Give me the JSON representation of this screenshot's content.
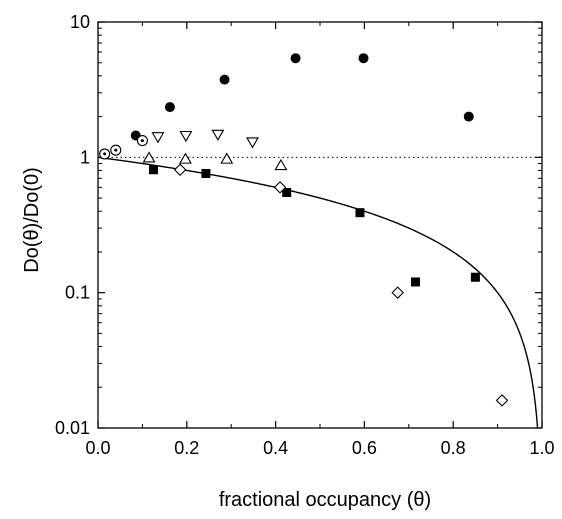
{
  "chart_data": {
    "type": "scatter",
    "title": "",
    "xlabel": "fractional occupancy (θ)",
    "ylabel": "Do(θ)/Do(0)",
    "xlim": [
      0.0,
      1.0
    ],
    "ylim": [
      0.01,
      10
    ],
    "yscale": "log",
    "x_ticks": [
      0.0,
      0.2,
      0.4,
      0.6,
      0.8,
      1.0
    ],
    "x_tick_labels": [
      "0.0",
      "0.2",
      "0.4",
      "0.6",
      "0.8",
      "1.0"
    ],
    "y_ticks": [
      0.01,
      0.1,
      1,
      10
    ],
    "y_tick_labels": [
      "0.01",
      "0.1",
      "1",
      "10"
    ],
    "grid": false,
    "reference_line": {
      "y": 1,
      "style": "dotted"
    },
    "series": [
      {
        "marker": "filled-circle",
        "color": "#000000",
        "points": [
          [
            0.085,
            1.45
          ],
          [
            0.162,
            2.35
          ],
          [
            0.285,
            3.75
          ],
          [
            0.445,
            5.4
          ],
          [
            0.598,
            5.4
          ],
          [
            0.835,
            2.0
          ]
        ]
      },
      {
        "marker": "open-circle-dot",
        "color": "#000000",
        "points": [
          [
            0.015,
            1.06
          ],
          [
            0.04,
            1.13
          ],
          [
            0.1,
            1.33
          ]
        ]
      },
      {
        "marker": "open-triangle-down",
        "color": "#000000",
        "points": [
          [
            0.135,
            1.42
          ],
          [
            0.198,
            1.45
          ],
          [
            0.27,
            1.48
          ],
          [
            0.348,
            1.3
          ]
        ]
      },
      {
        "marker": "open-triangle-up",
        "color": "#000000",
        "points": [
          [
            0.115,
            0.99
          ],
          [
            0.197,
            0.97
          ],
          [
            0.29,
            0.97
          ],
          [
            0.412,
            0.87
          ]
        ]
      },
      {
        "marker": "filled-square",
        "color": "#000000",
        "points": [
          [
            0.125,
            0.81
          ],
          [
            0.243,
            0.76
          ],
          [
            0.425,
            0.55
          ],
          [
            0.59,
            0.39
          ],
          [
            0.715,
            0.12
          ],
          [
            0.85,
            0.13
          ]
        ]
      },
      {
        "marker": "open-diamond",
        "color": "#000000",
        "points": [
          [
            0.185,
            0.81
          ],
          [
            0.41,
            0.6
          ],
          [
            0.675,
            0.1
          ],
          [
            0.91,
            0.016
          ]
        ]
      }
    ],
    "curve": {
      "formula": "1 - theta",
      "style": "solid",
      "color": "#000000"
    }
  }
}
